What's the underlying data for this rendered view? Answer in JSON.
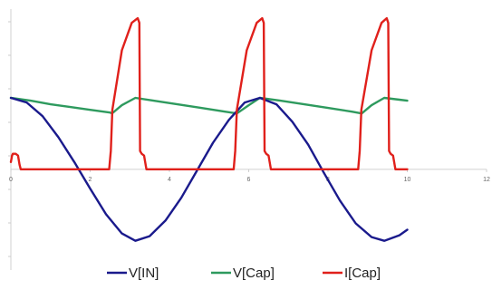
{
  "chart_data": {
    "type": "line",
    "title": "",
    "xlabel": "",
    "ylabel": "",
    "xlim": [
      0,
      12
    ],
    "ylim": [
      -1.1,
      1.75
    ],
    "x_ticks": [
      0,
      2,
      4,
      6,
      8,
      10,
      12
    ],
    "x_tick_labels": [
      "0",
      "2",
      "4",
      "6",
      "8",
      "10",
      "12"
    ],
    "grid": false,
    "legend_position": "bottom",
    "series": [
      {
        "name": "V[IN]",
        "color": "#1a1a8c",
        "x": [
          0,
          0.4,
          0.8,
          1.2,
          1.6,
          2.0,
          2.4,
          2.8,
          3.14,
          3.5,
          3.9,
          4.3,
          4.7,
          5.1,
          5.5,
          5.9,
          6.28,
          6.7,
          7.1,
          7.5,
          7.9,
          8.3,
          8.7,
          9.1,
          9.42,
          9.8,
          10.0
        ],
        "values": [
          0.78,
          0.73,
          0.58,
          0.35,
          0.08,
          -0.21,
          -0.49,
          -0.7,
          -0.78,
          -0.73,
          -0.56,
          -0.31,
          -0.01,
          0.29,
          0.54,
          0.73,
          0.78,
          0.71,
          0.52,
          0.27,
          -0.04,
          -0.34,
          -0.59,
          -0.74,
          -0.78,
          -0.72,
          -0.66
        ]
      },
      {
        "name": "V[Cap]",
        "color": "#2e9a5e",
        "x": [
          0,
          0.5,
          1.0,
          1.5,
          2.0,
          2.5,
          2.55,
          2.8,
          3.14,
          3.6,
          4.2,
          4.8,
          5.4,
          5.7,
          6.0,
          6.28,
          6.8,
          7.4,
          8.0,
          8.6,
          8.85,
          9.1,
          9.42,
          9.8,
          10.0
        ],
        "values": [
          0.78,
          0.75,
          0.71,
          0.68,
          0.65,
          0.62,
          0.61,
          0.7,
          0.78,
          0.75,
          0.71,
          0.67,
          0.63,
          0.61,
          0.7,
          0.78,
          0.75,
          0.71,
          0.67,
          0.63,
          0.61,
          0.7,
          0.78,
          0.76,
          0.75
        ]
      },
      {
        "name": "I[Cap]",
        "color": "#e0201b",
        "x": [
          0,
          0.03,
          0.05,
          0.12,
          0.18,
          0.22,
          0.25,
          2.48,
          2.52,
          2.56,
          2.8,
          3.05,
          3.2,
          3.24,
          3.26,
          3.3,
          3.36,
          3.42,
          3.6,
          5.62,
          5.66,
          5.7,
          5.95,
          6.2,
          6.34,
          6.38,
          6.4,
          6.44,
          6.5,
          6.56,
          6.75,
          8.76,
          8.8,
          8.84,
          9.1,
          9.35,
          9.48,
          9.52,
          9.54,
          9.58,
          9.64,
          9.7,
          9.9,
          10.0
        ],
        "values": [
          0.08,
          0.15,
          0.17,
          0.17,
          0.15,
          0.05,
          0.0,
          0.0,
          0.2,
          0.65,
          1.3,
          1.6,
          1.65,
          1.6,
          0.2,
          0.17,
          0.15,
          0.0,
          0.0,
          0.0,
          0.2,
          0.65,
          1.3,
          1.6,
          1.65,
          1.6,
          0.2,
          0.17,
          0.15,
          0.0,
          0.0,
          0.0,
          0.2,
          0.65,
          1.3,
          1.6,
          1.65,
          1.6,
          0.2,
          0.17,
          0.15,
          0.0,
          0.0,
          0.0
        ]
      }
    ]
  }
}
